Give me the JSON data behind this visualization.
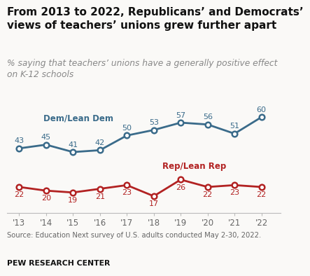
{
  "title": "From 2013 to 2022, Republicans’ and Democrats’\nviews of teachers’ unions grew further apart",
  "subtitle": "% saying that teachers’ unions have a generally positive effect\non K-12 schools",
  "source": "Source: Education Next survey of U.S. adults conducted May 2-30, 2022.",
  "footer": "PEW RESEARCH CENTER",
  "years": [
    2013,
    2014,
    2015,
    2016,
    2017,
    2018,
    2019,
    2020,
    2021,
    2022
  ],
  "dem_values": [
    43,
    45,
    41,
    42,
    50,
    53,
    57,
    56,
    51,
    60
  ],
  "rep_values": [
    22,
    20,
    19,
    21,
    23,
    17,
    26,
    22,
    23,
    22
  ],
  "dem_color": "#3a6b8a",
  "rep_color": "#b22222",
  "dem_label": "Dem/Lean Dem",
  "rep_label": "Rep/Lean Rep",
  "background_color": "#faf9f7",
  "ylim": [
    8,
    70
  ],
  "title_fontsize": 11.0,
  "subtitle_fontsize": 8.8,
  "label_fontsize": 8.5,
  "source_fontsize": 7.2,
  "footer_fontsize": 7.8,
  "data_fontsize": 8.0
}
